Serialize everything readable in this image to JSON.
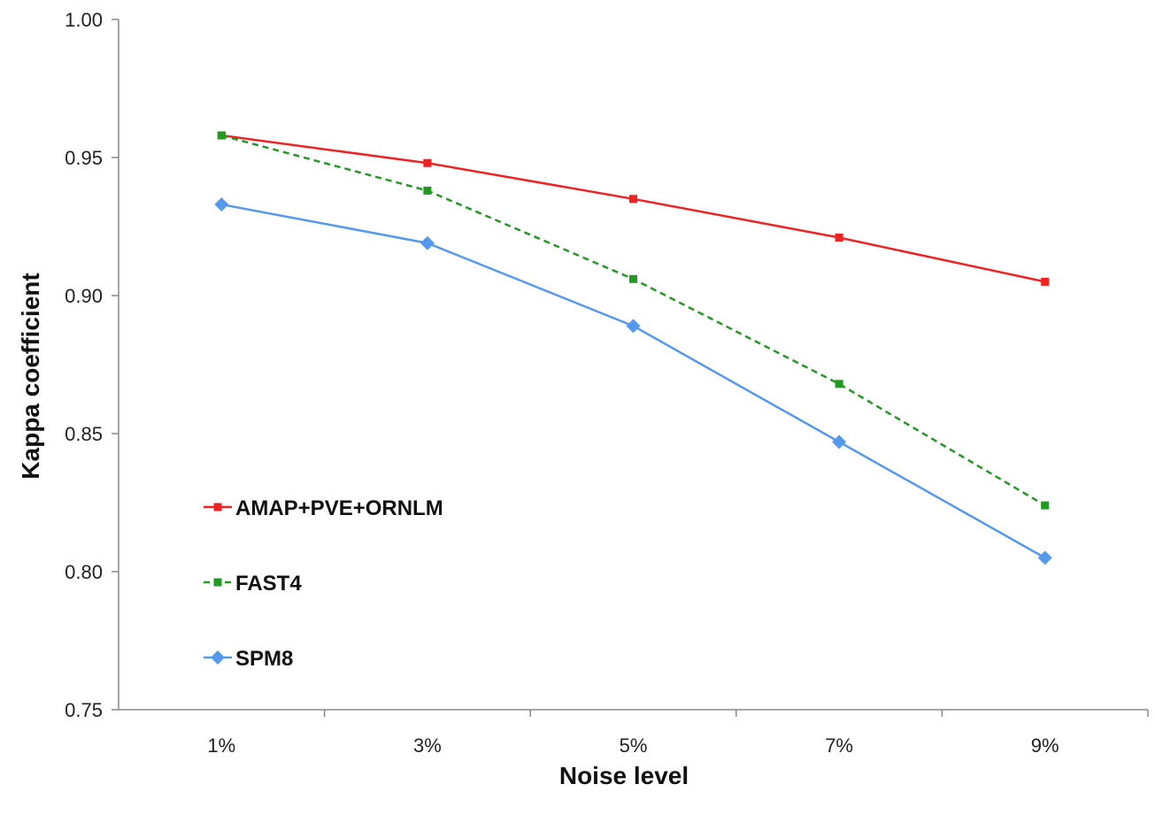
{
  "chart_data": {
    "type": "line",
    "title": "",
    "xlabel": "Noise level",
    "ylabel": "Kappa coefficient",
    "categories": [
      "1%",
      "3%",
      "5%",
      "7%",
      "9%"
    ],
    "ylim": [
      0.75,
      1.0
    ],
    "yticks": [
      "0.75",
      "0.80",
      "0.85",
      "0.90",
      "0.95",
      "1.00"
    ],
    "grid": false,
    "legend_position": "lower-left",
    "series": [
      {
        "name": "AMAP+PVE+ORNLM",
        "values": [
          0.958,
          0.948,
          0.935,
          0.921,
          0.905
        ],
        "color": "#ee2222",
        "dash": "solid",
        "marker": "square"
      },
      {
        "name": "FAST4",
        "values": [
          0.958,
          0.938,
          0.906,
          0.868,
          0.824
        ],
        "color": "#229922",
        "dash": "dashed",
        "marker": "square"
      },
      {
        "name": "SPM8",
        "values": [
          0.933,
          0.919,
          0.889,
          0.847,
          0.805
        ],
        "color": "#5599ee",
        "dash": "solid",
        "marker": "diamond"
      }
    ]
  }
}
